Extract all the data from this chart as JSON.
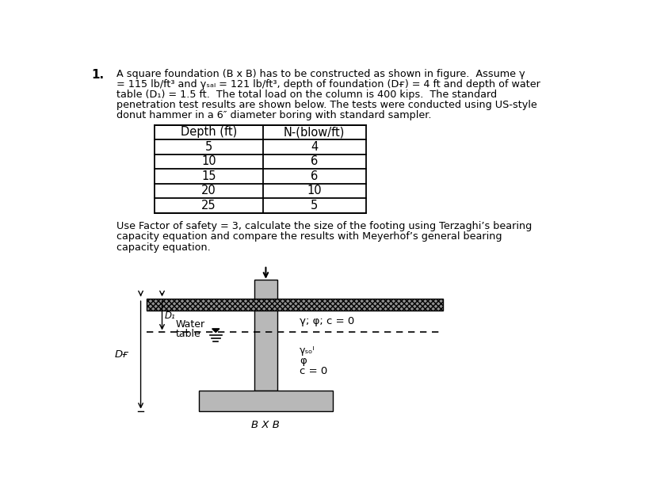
{
  "background_color": "#ffffff",
  "problem_number": "1.",
  "para_line1": "A square foundation (B x B) has to be constructed as shown in figure.  Assume γ",
  "para_line2": "= 115 lb/ft³ and γₛₐₗ = 121 lb/ft³, depth of foundation (Dғ) = 4 ft and depth of water",
  "para_line3": "table (D₁) = 1.5 ft.  The total load on the column is 400 kips.  The standard",
  "para_line4": "penetration test results are shown below. The tests were conducted using US-style",
  "para_line5": "donut hammer in a 6″ diameter boring with standard sampler.",
  "table_depth": [
    5,
    10,
    15,
    20,
    25
  ],
  "table_n": [
    4,
    6,
    6,
    10,
    5
  ],
  "footer_line1": "Use Factor of safety = 3, calculate the size of the footing using Terzaghi’s bearing",
  "footer_line2": "capacity equation and compare the results with Meyerhof’s general bearing",
  "footer_line3": "capacity equation.",
  "col_gray": "#b8b8b8",
  "ground_gray": "#888888",
  "footing_gray": "#b8b8b8"
}
